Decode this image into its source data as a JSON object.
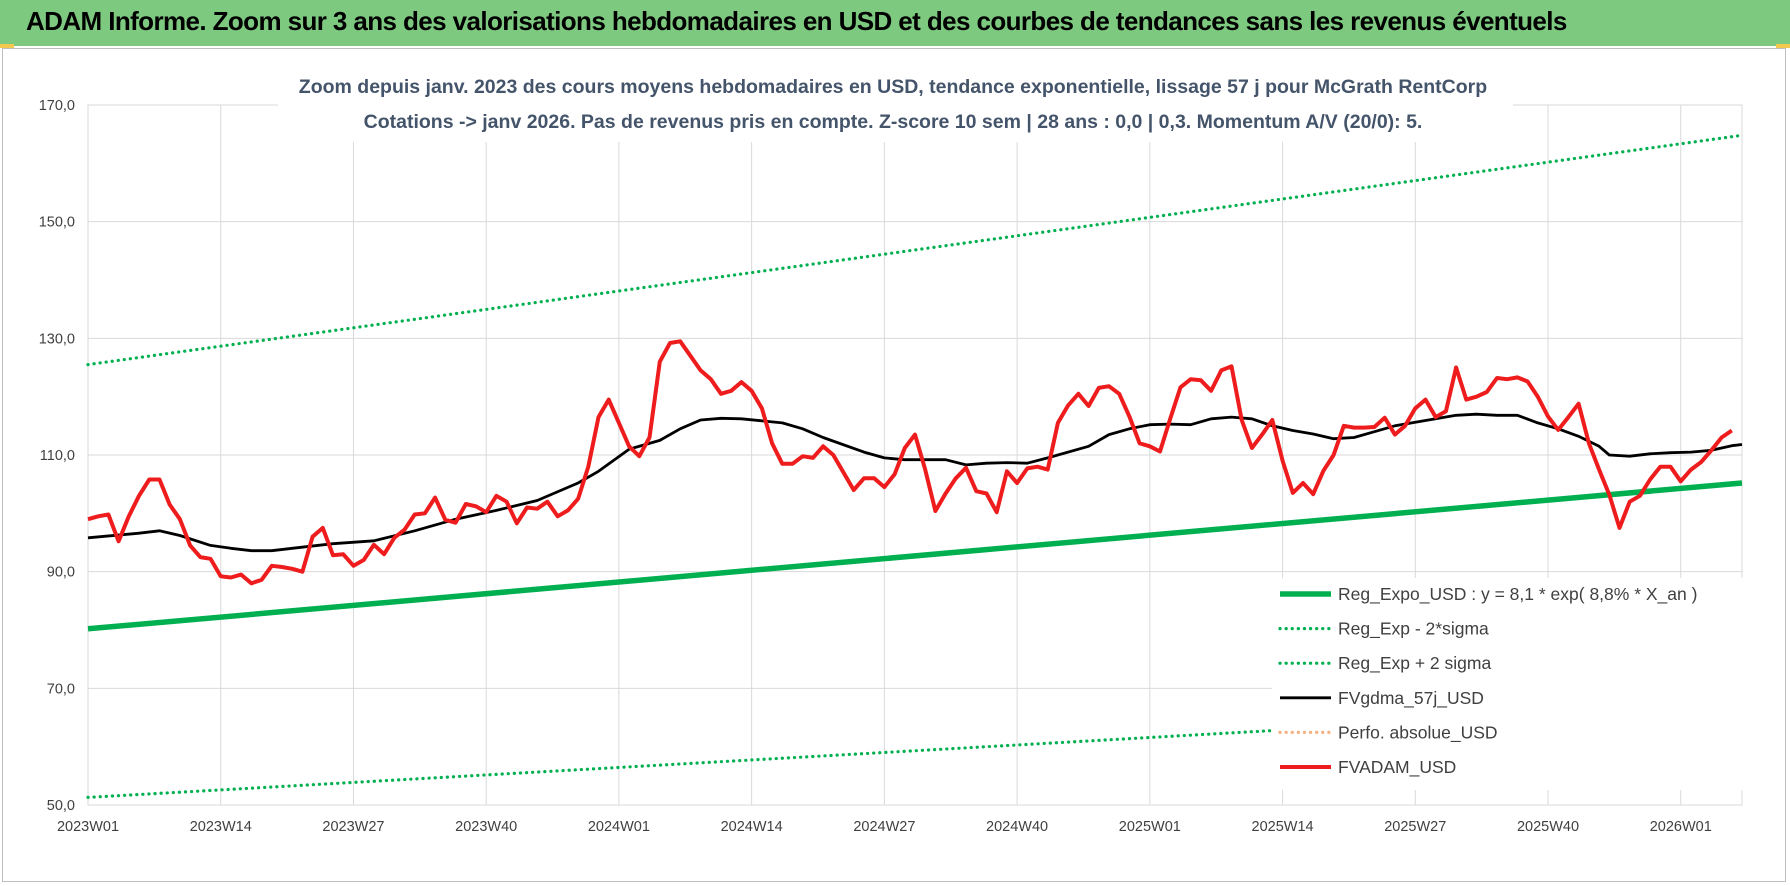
{
  "header": {
    "title": "ADAM Informe. Zoom sur 3 ans des valorisations hebdomadaires en USD et des courbes de tendances sans les revenus éventuels"
  },
  "chart_data": {
    "type": "line",
    "title_lines": [
      "Zoom depuis janv. 2023 des cours moyens hebdomadaires en USD, tendance exponentielle, lissage 57 j pour McGrath RentCorp",
      "Cotations -> janv 2026. Pas de revenus pris en compte. Z-score 10 sem | 28 ans : 0,0 | 0,3. Momentum A/V (20/0): 5."
    ],
    "xlabel": "",
    "ylabel": "",
    "ylim": [
      50,
      170
    ],
    "yticks": [
      "50,0",
      "70,0",
      "90,0",
      "110,0",
      "130,0",
      "150,0",
      "170,0"
    ],
    "ytick_values": [
      50,
      70,
      90,
      110,
      130,
      150,
      170
    ],
    "x_range": [
      0,
      162
    ],
    "xticks": [
      {
        "label": "2023W01",
        "x": 0
      },
      {
        "label": "2023W14",
        "x": 13
      },
      {
        "label": "2023W27",
        "x": 26
      },
      {
        "label": "2023W40",
        "x": 39
      },
      {
        "label": "2024W01",
        "x": 52
      },
      {
        "label": "2024W14",
        "x": 65
      },
      {
        "label": "2024W27",
        "x": 78
      },
      {
        "label": "2024W40",
        "x": 91
      },
      {
        "label": "2025W01",
        "x": 104
      },
      {
        "label": "2025W14",
        "x": 117
      },
      {
        "label": "2025W27",
        "x": 130
      },
      {
        "label": "2025W40",
        "x": 143
      },
      {
        "label": "2026W01",
        "x": 156
      }
    ],
    "grid": "vertical and horizontal",
    "legend_position": "bottom-right",
    "series": [
      {
        "name": "Reg_Expo_USD : y = 8,1 * exp( 8,8% * X_an )",
        "color": "#00b050",
        "style": "solid-thick",
        "points": [
          [
            0,
            80.2
          ],
          [
            162,
            105.2
          ]
        ]
      },
      {
        "name": "Reg_Exp - 2*sigma",
        "color": "#00b050",
        "style": "dotted",
        "points": [
          [
            0,
            51.3
          ],
          [
            162,
            67.3
          ]
        ]
      },
      {
        "name": "Reg_Exp + 2 sigma",
        "color": "#00b050",
        "style": "dotted",
        "points": [
          [
            0,
            125.5
          ],
          [
            162,
            164.8
          ]
        ]
      },
      {
        "name": "FVgdma_57j_USD",
        "color": "#000000",
        "style": "solid",
        "points": [
          [
            0,
            95.8
          ],
          [
            5,
            96.6
          ],
          [
            7,
            97
          ],
          [
            9,
            96.2
          ],
          [
            12,
            94.5
          ],
          [
            14,
            94
          ],
          [
            16,
            93.6
          ],
          [
            18,
            93.6
          ],
          [
            20,
            94
          ],
          [
            24,
            94.8
          ],
          [
            28,
            95.3
          ],
          [
            32,
            97
          ],
          [
            36,
            99
          ],
          [
            40,
            100.5
          ],
          [
            44,
            102.2
          ],
          [
            48,
            105.2
          ],
          [
            50,
            107.2
          ],
          [
            53,
            111
          ],
          [
            56,
            112.5
          ],
          [
            58,
            114.5
          ],
          [
            60,
            116
          ],
          [
            62,
            116.3
          ],
          [
            64,
            116.2
          ],
          [
            68,
            115.5
          ],
          [
            70,
            114.5
          ],
          [
            72,
            113
          ],
          [
            76,
            110.5
          ],
          [
            78,
            109.5
          ],
          [
            80,
            109.2
          ],
          [
            84,
            109.2
          ],
          [
            86,
            108.3
          ],
          [
            88,
            108.6
          ],
          [
            90,
            108.7
          ],
          [
            92,
            108.6
          ],
          [
            94,
            109.5
          ],
          [
            98,
            111.5
          ],
          [
            100,
            113.5
          ],
          [
            102,
            114.5
          ],
          [
            104,
            115.2
          ],
          [
            106,
            115.3
          ],
          [
            108,
            115.2
          ],
          [
            110,
            116.2
          ],
          [
            112,
            116.5
          ],
          [
            114,
            116.2
          ],
          [
            116,
            115
          ],
          [
            118,
            114.2
          ],
          [
            120,
            113.6
          ],
          [
            122,
            112.8
          ],
          [
            124,
            113
          ],
          [
            126,
            114
          ],
          [
            128,
            115
          ],
          [
            130,
            115.6
          ],
          [
            132,
            116.2
          ],
          [
            134,
            116.8
          ],
          [
            136,
            117
          ],
          [
            138,
            116.8
          ],
          [
            140,
            116.8
          ],
          [
            142,
            115.5
          ],
          [
            144,
            114.5
          ],
          [
            146,
            113.2
          ],
          [
            148,
            111.5
          ],
          [
            149,
            110
          ],
          [
            151,
            109.8
          ],
          [
            153,
            110.2
          ],
          [
            155,
            110.4
          ],
          [
            157,
            110.5
          ],
          [
            159,
            110.8
          ],
          [
            161,
            111.6
          ],
          [
            162,
            111.8
          ]
        ]
      },
      {
        "name": "Perfo. absolue_USD",
        "color": "#f4b183",
        "style": "dotted",
        "points": []
      },
      {
        "name": "FVADAM_USD",
        "color": "#ee1c1c",
        "style": "solid-thick",
        "points": [
          [
            0,
            99
          ],
          [
            1,
            99.5
          ],
          [
            2,
            99.8
          ],
          [
            3,
            95.2
          ],
          [
            4,
            99.5
          ],
          [
            5,
            103
          ],
          [
            6,
            105.8
          ],
          [
            7,
            105.8
          ],
          [
            8,
            101.5
          ],
          [
            9,
            99
          ],
          [
            10,
            94.5
          ],
          [
            11,
            92.5
          ],
          [
            12,
            92.2
          ],
          [
            13,
            89.2
          ],
          [
            14,
            89
          ],
          [
            15,
            89.5
          ],
          [
            16,
            88
          ],
          [
            17,
            88.6
          ],
          [
            18,
            91
          ],
          [
            19,
            90.8
          ],
          [
            20,
            90.5
          ],
          [
            21,
            90
          ],
          [
            22,
            96
          ],
          [
            23,
            97.5
          ],
          [
            24,
            92.8
          ],
          [
            25,
            93
          ],
          [
            26,
            91
          ],
          [
            27,
            92
          ],
          [
            28,
            94.6
          ],
          [
            29,
            93
          ],
          [
            30,
            95.8
          ],
          [
            31,
            97.2
          ],
          [
            32,
            99.8
          ],
          [
            33,
            100
          ],
          [
            34,
            102.7
          ],
          [
            35,
            98.9
          ],
          [
            36,
            98.4
          ],
          [
            37,
            101.6
          ],
          [
            38,
            101.2
          ],
          [
            39,
            100.2
          ],
          [
            40,
            103
          ],
          [
            41,
            102
          ],
          [
            42,
            98.3
          ],
          [
            43,
            101
          ],
          [
            44,
            100.8
          ],
          [
            45,
            102
          ],
          [
            46,
            99.5
          ],
          [
            47,
            100.5
          ],
          [
            48,
            102.5
          ],
          [
            49,
            108
          ],
          [
            50,
            116.5
          ],
          [
            51,
            119.5
          ],
          [
            52,
            115.5
          ],
          [
            53,
            111.5
          ],
          [
            54,
            109.8
          ],
          [
            55,
            113
          ],
          [
            56,
            126
          ],
          [
            57,
            129.2
          ],
          [
            58,
            129.5
          ],
          [
            59,
            127
          ],
          [
            60,
            124.5
          ],
          [
            61,
            123
          ],
          [
            62,
            120.5
          ],
          [
            63,
            121
          ],
          [
            64,
            122.5
          ],
          [
            65,
            121
          ],
          [
            66,
            118
          ],
          [
            67,
            112
          ],
          [
            68,
            108.5
          ],
          [
            69,
            108.5
          ],
          [
            70,
            109.8
          ],
          [
            71,
            109.5
          ],
          [
            72,
            111.5
          ],
          [
            73,
            110
          ],
          [
            74,
            107
          ],
          [
            75,
            104
          ],
          [
            76,
            106
          ],
          [
            77,
            106
          ],
          [
            78,
            104.5
          ],
          [
            79,
            106.7
          ],
          [
            80,
            111.2
          ],
          [
            81,
            113.5
          ],
          [
            82,
            107.5
          ],
          [
            83,
            100.4
          ],
          [
            84,
            103.4
          ],
          [
            85,
            106
          ],
          [
            86,
            107.8
          ],
          [
            87,
            103.8
          ],
          [
            88,
            103.4
          ],
          [
            89,
            100.2
          ],
          [
            90,
            107.2
          ],
          [
            91,
            105.2
          ],
          [
            92,
            107.7
          ],
          [
            93,
            108
          ],
          [
            94,
            107.5
          ],
          [
            95,
            115.5
          ],
          [
            96,
            118.5
          ],
          [
            97,
            120.5
          ],
          [
            98,
            118.4
          ],
          [
            99,
            121.5
          ],
          [
            100,
            121.8
          ],
          [
            101,
            120.5
          ],
          [
            102,
            116.6
          ],
          [
            103,
            112
          ],
          [
            104,
            111.5
          ],
          [
            105,
            110.6
          ],
          [
            106,
            116.2
          ],
          [
            107,
            121.6
          ],
          [
            108,
            123
          ],
          [
            109,
            122.8
          ],
          [
            110,
            121
          ],
          [
            111,
            124.5
          ],
          [
            112,
            125.2
          ],
          [
            113,
            116
          ],
          [
            114,
            111.2
          ],
          [
            115,
            113.5
          ],
          [
            116,
            116
          ],
          [
            117,
            109
          ],
          [
            118,
            103.5
          ],
          [
            119,
            105.2
          ],
          [
            120,
            103.3
          ],
          [
            121,
            107.3
          ],
          [
            122,
            110
          ],
          [
            123,
            115
          ],
          [
            124,
            114.7
          ],
          [
            125,
            114.7
          ],
          [
            126,
            114.8
          ],
          [
            127,
            116.4
          ],
          [
            128,
            113.5
          ],
          [
            129,
            115
          ],
          [
            130,
            118
          ],
          [
            131,
            119.5
          ],
          [
            132,
            116.5
          ],
          [
            133,
            117.5
          ],
          [
            134,
            125
          ],
          [
            135,
            119.5
          ],
          [
            136,
            120
          ],
          [
            137,
            120.8
          ],
          [
            138,
            123.2
          ],
          [
            139,
            123
          ],
          [
            140,
            123.3
          ],
          [
            141,
            122.6
          ],
          [
            142,
            120
          ],
          [
            143,
            116.6
          ],
          [
            144,
            114.3
          ],
          [
            145,
            116.5
          ],
          [
            146,
            118.8
          ],
          [
            147,
            112
          ],
          [
            148,
            107.5
          ],
          [
            149,
            103.2
          ],
          [
            150,
            97.5
          ],
          [
            151,
            102
          ],
          [
            152,
            103
          ],
          [
            153,
            105.8
          ],
          [
            154,
            108
          ],
          [
            155,
            108
          ],
          [
            156,
            105.5
          ],
          [
            157,
            107.5
          ],
          [
            158,
            108.8
          ],
          [
            159,
            110.8
          ],
          [
            160,
            113
          ],
          [
            161,
            114.2
          ]
        ]
      }
    ]
  }
}
